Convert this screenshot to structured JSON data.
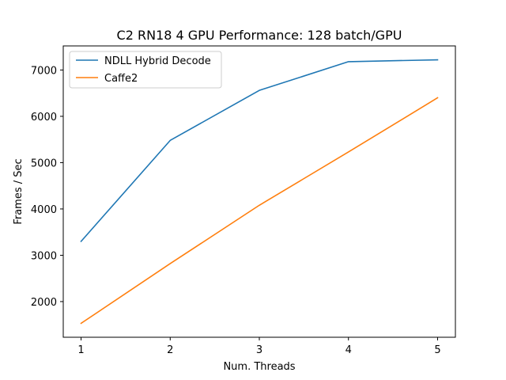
{
  "chart_data": {
    "type": "line",
    "title": "C2 RN18 4 GPU Performance: 128 batch/GPU",
    "xlabel": "Num. Threads",
    "ylabel": "Frames / Sec",
    "x": [
      1,
      2,
      3,
      4,
      5
    ],
    "xticks": [
      1,
      2,
      3,
      4,
      5
    ],
    "yticks": [
      2000,
      3000,
      4000,
      5000,
      6000,
      7000
    ],
    "xlim": [
      0.8,
      5.2
    ],
    "ylim": [
      1230,
      7520
    ],
    "grid": false,
    "legend_position": "top-left",
    "series": [
      {
        "name": "NDLL Hybrid Decode",
        "color": "#1f77b4",
        "values": [
          3300,
          5480,
          6560,
          7180,
          7220
        ]
      },
      {
        "name": "Caffe2",
        "color": "#ff7f0e",
        "values": [
          1530,
          2820,
          4080,
          5230,
          6400
        ]
      }
    ]
  }
}
